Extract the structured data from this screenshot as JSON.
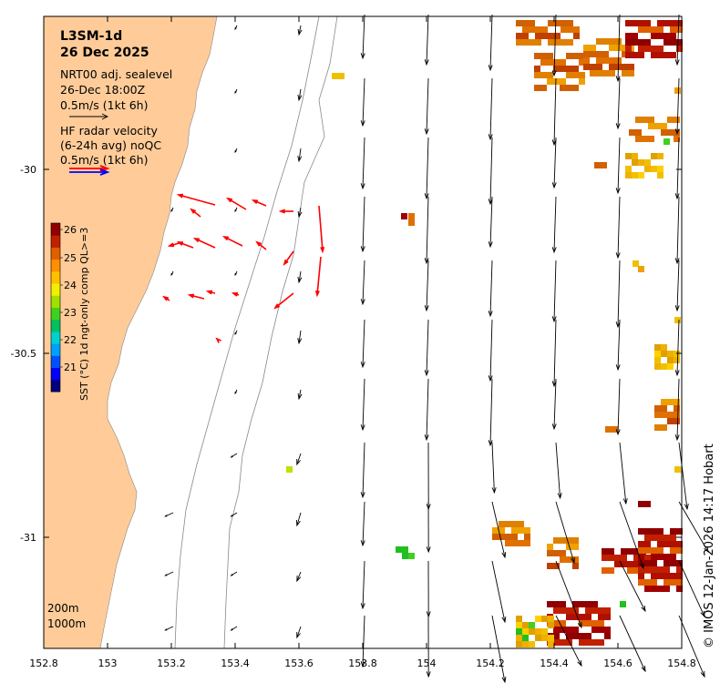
{
  "header": {
    "product": "L3SM-1d",
    "date": "26 Dec 2025"
  },
  "legend": {
    "model_line1": "NRT00 adj. sealevel",
    "model_line2": "26-Dec 18:00Z",
    "model_scale": "0.5m/s (1kt 6h)",
    "radar_line1": "HF radar velocity",
    "radar_line2": "(6-24h avg) noQC",
    "radar_scale": "0.5m/s (1kt 6h)"
  },
  "colorbar": {
    "title": "SST (°C) 1d ngt-only comp QL>=3",
    "ticks": [
      "26",
      "25",
      "24",
      "23",
      "22",
      "21"
    ],
    "colors": [
      "#000080",
      "#0000ff",
      "#0050ff",
      "#00a0ff",
      "#00d0d0",
      "#00c060",
      "#40d020",
      "#a0e000",
      "#f0f000",
      "#ffc000",
      "#ff9000",
      "#e06000",
      "#c02000",
      "#900000"
    ]
  },
  "isobaths": {
    "shallow": "200m",
    "deep": "1000m"
  },
  "credit": "© IMOS 12-Jan-2026 14:17 Hobart",
  "axes": {
    "x_ticks": [
      "152.8",
      "153",
      "153.2",
      "153.4",
      "153.6",
      "153.8",
      "154",
      "154.2",
      "154.4",
      "154.6",
      "154.8"
    ],
    "y_ticks": [
      "-30",
      "-30.5",
      "-31"
    ]
  },
  "colors": {
    "land": "#ffcc99",
    "sea": "#ffffff",
    "model_arrow": "#000000",
    "radar_arrow": "#ff0000",
    "radar_legend_blue": "#0000ff"
  }
}
